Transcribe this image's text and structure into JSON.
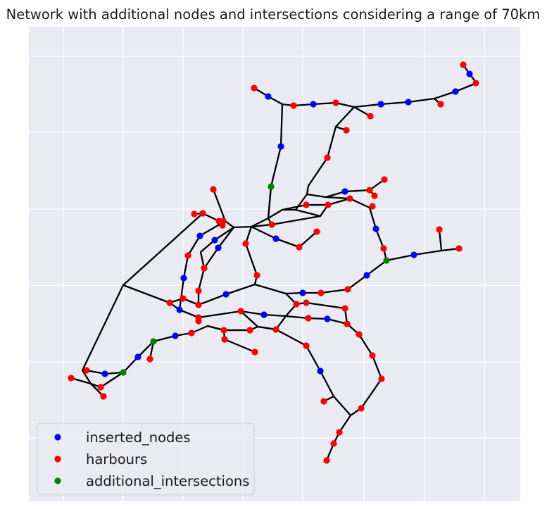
{
  "chart_data": {
    "type": "scatter",
    "title": "Network with additional nodes and intersections considering a range of 70km",
    "xlabel": "",
    "ylabel": "",
    "x_gridlines": [
      90,
      175,
      260,
      345,
      430,
      517,
      603,
      688
    ],
    "y_gridlines": [
      80,
      188,
      297,
      405,
      514,
      622
    ],
    "grid": true,
    "legend_position": "lower left",
    "colors": {
      "background": "#eaeaf2",
      "grid": "#ffffff",
      "edge": "#000000",
      "inserted_nodes": "#0000ff",
      "harbours": "#ff0000",
      "additional_intersections": "#008000"
    },
    "series": [
      {
        "name": "inserted_nodes",
        "color": "#0000ff",
        "points": [
          [
            381,
            137
          ],
          [
            445,
            148
          ],
          [
            541,
            148
          ],
          [
            580,
            145
          ],
          [
            647,
            130
          ],
          [
            667,
            105
          ],
          [
            399,
            208
          ],
          [
            490,
            272
          ],
          [
            534,
            325
          ],
          [
            392,
            339
          ],
          [
            305,
            341
          ],
          [
            284,
            335
          ],
          [
            310,
            352
          ],
          [
            261,
            395
          ],
          [
            321,
            418
          ],
          [
            430,
            416
          ],
          [
            375,
            447
          ],
          [
            465,
            453
          ],
          [
            255,
            440
          ],
          [
            249,
            477
          ],
          [
            196,
            507
          ],
          [
            149,
            531
          ],
          [
            455,
            527
          ],
          [
            521,
            391
          ],
          [
            588,
            362
          ]
        ]
      },
      {
        "name": "harbours",
        "color": "#ff0000",
        "points": [
          [
            361,
            125
          ],
          [
            417,
            150
          ],
          [
            477,
            146
          ],
          [
            526,
            165
          ],
          [
            626,
            148
          ],
          [
            658,
            92
          ],
          [
            676,
            118
          ],
          [
            492,
            185
          ],
          [
            465,
            224
          ],
          [
            546,
            255
          ],
          [
            525,
            270
          ],
          [
            532,
            278
          ],
          [
            497,
            282
          ],
          [
            466,
            291
          ],
          [
            435,
            291
          ],
          [
            529,
            293
          ],
          [
            450,
            329
          ],
          [
            425,
            351
          ],
          [
            386,
            319
          ],
          [
            303,
            269
          ],
          [
            276,
            304
          ],
          [
            288,
            303
          ],
          [
            311,
            314
          ],
          [
            317,
            314
          ],
          [
            316,
            320
          ],
          [
            349,
            346
          ],
          [
            267,
            363
          ],
          [
            290,
            381
          ],
          [
            365,
            391
          ],
          [
            456,
            416
          ],
          [
            494,
            411
          ],
          [
            624,
            326
          ],
          [
            652,
            353
          ],
          [
            545,
            353
          ],
          [
            282,
            413
          ],
          [
            260,
            424
          ],
          [
            241,
            430
          ],
          [
            282,
            433
          ],
          [
            421,
            432
          ],
          [
            435,
            430
          ],
          [
            490,
            438
          ],
          [
            342,
            442
          ],
          [
            282,
            451
          ],
          [
            282,
            456
          ],
          [
            438,
            452
          ],
          [
            493,
            460
          ],
          [
            318,
            469
          ],
          [
            355,
            469
          ],
          [
            392,
            468
          ],
          [
            272,
            473
          ],
          [
            510,
            475
          ],
          [
            319,
            482
          ],
          [
            435,
            491
          ],
          [
            362,
            500
          ],
          [
            213,
            510
          ],
          [
            529,
            505
          ],
          [
            123,
            526
          ],
          [
            101,
            537
          ],
          [
            143,
            550
          ],
          [
            147,
            563
          ],
          [
            542,
            538
          ],
          [
            460,
            570
          ],
          [
            513,
            580
          ],
          [
            482,
            614
          ],
          [
            474,
            630
          ],
          [
            464,
            654
          ]
        ]
      },
      {
        "name": "additional_intersections",
        "color": "#008000",
        "points": [
          [
            385,
            265
          ],
          [
            549,
            370
          ],
          [
            218,
            485
          ],
          [
            175,
            529
          ]
        ]
      }
    ],
    "edges": [
      [
        [
          361,
          125
        ],
        [
          381,
          137
        ],
        [
          401,
          148
        ],
        [
          417,
          150
        ],
        [
          445,
          148
        ],
        [
          477,
          146
        ],
        [
          503,
          152
        ],
        [
          541,
          148
        ],
        [
          580,
          145
        ],
        [
          617,
          140
        ],
        [
          647,
          130
        ],
        [
          677,
          118
        ],
        [
          667,
          105
        ],
        [
          658,
          92
        ]
      ],
      [
        [
          617,
          140
        ],
        [
          626,
          148
        ]
      ],
      [
        [
          503,
          152
        ],
        [
          526,
          165
        ]
      ],
      [
        [
          503,
          152
        ],
        [
          477,
          180
        ],
        [
          492,
          185
        ]
      ],
      [
        [
          477,
          180
        ],
        [
          465,
          224
        ],
        [
          438,
          264
        ],
        [
          436,
          276
        ],
        [
          463,
          280
        ],
        [
          490,
          272
        ],
        [
          525,
          270
        ],
        [
          546,
          255
        ]
      ],
      [
        [
          525,
          270
        ],
        [
          532,
          278
        ]
      ],
      [
        [
          463,
          280
        ],
        [
          497,
          282
        ],
        [
          525,
          295
        ],
        [
          534,
          325
        ],
        [
          545,
          353
        ],
        [
          549,
          370
        ],
        [
          521,
          391
        ],
        [
          494,
          411
        ],
        [
          456,
          416
        ],
        [
          430,
          416
        ],
        [
          406,
          417
        ],
        [
          362,
          404
        ],
        [
          321,
          418
        ],
        [
          282,
          433
        ],
        [
          260,
          424
        ],
        [
          241,
          430
        ]
      ],
      [
        [
          525,
          295
        ],
        [
          529,
          293
        ]
      ],
      [
        [
          549,
          370
        ],
        [
          588,
          362
        ],
        [
          627,
          356
        ],
        [
          652,
          353
        ]
      ],
      [
        [
          627,
          356
        ],
        [
          624,
          326
        ]
      ],
      [
        [
          401,
          148
        ],
        [
          399,
          208
        ],
        [
          385,
          265
        ],
        [
          381,
          310
        ],
        [
          401,
          298
        ],
        [
          435,
          291
        ],
        [
          466,
          291
        ],
        [
          497,
          282
        ]
      ],
      [
        [
          436,
          276
        ],
        [
          420,
          298
        ],
        [
          401,
          298
        ]
      ],
      [
        [
          420,
          298
        ],
        [
          455,
          307
        ],
        [
          386,
          319
        ],
        [
          357,
          322
        ],
        [
          332,
          323
        ],
        [
          320,
          314
        ],
        [
          303,
          269
        ]
      ],
      [
        [
          455,
          307
        ],
        [
          466,
          291
        ]
      ],
      [
        [
          385,
          265
        ],
        [
          381,
          310
        ],
        [
          386,
          319
        ]
      ],
      [
        [
          381,
          310
        ],
        [
          357,
          322
        ],
        [
          349,
          346
        ],
        [
          365,
          391
        ],
        [
          362,
          404
        ]
      ],
      [
        [
          357,
          322
        ],
        [
          392,
          339
        ],
        [
          425,
          351
        ],
        [
          450,
          329
        ]
      ],
      [
        [
          332,
          323
        ],
        [
          310,
          352
        ],
        [
          290,
          381
        ],
        [
          282,
          413
        ],
        [
          282,
          433
        ]
      ],
      [
        [
          332,
          323
        ],
        [
          305,
          341
        ],
        [
          285,
          358
        ],
        [
          290,
          381
        ]
      ],
      [
        [
          320,
          314
        ],
        [
          284,
          335
        ],
        [
          267,
          363
        ],
        [
          261,
          395
        ],
        [
          255,
          440
        ]
      ],
      [
        [
          276,
          304
        ],
        [
          288,
          303
        ],
        [
          311,
          314
        ]
      ],
      [
        [
          288,
          303
        ],
        [
          175,
          405
        ],
        [
          241,
          430
        ],
        [
          255,
          440
        ],
        [
          282,
          451
        ]
      ],
      [
        [
          175,
          405
        ],
        [
          117,
          526
        ],
        [
          129,
          545
        ],
        [
          147,
          563
        ]
      ],
      [
        [
          129,
          545
        ],
        [
          101,
          537
        ]
      ],
      [
        [
          129,
          545
        ],
        [
          143,
          550
        ],
        [
          175,
          529
        ],
        [
          196,
          507
        ],
        [
          218,
          485
        ],
        [
          249,
          477
        ],
        [
          272,
          473
        ],
        [
          295,
          463
        ],
        [
          318,
          469
        ],
        [
          355,
          469
        ]
      ],
      [
        [
          218,
          485
        ],
        [
          213,
          510
        ]
      ],
      [
        [
          123,
          526
        ],
        [
          149,
          531
        ],
        [
          175,
          529
        ]
      ],
      [
        [
          282,
          451
        ],
        [
          342,
          442
        ],
        [
          375,
          447
        ],
        [
          406,
          449
        ],
        [
          421,
          432
        ],
        [
          435,
          430
        ],
        [
          490,
          438
        ],
        [
          493,
          460
        ],
        [
          510,
          475
        ],
        [
          529,
          505
        ],
        [
          542,
          538
        ],
        [
          513,
          580
        ],
        [
          498,
          590
        ],
        [
          482,
          614
        ],
        [
          474,
          630
        ],
        [
          464,
          654
        ]
      ],
      [
        [
          406,
          449
        ],
        [
          438,
          452
        ],
        [
          465,
          453
        ],
        [
          493,
          460
        ]
      ],
      [
        [
          342,
          442
        ],
        [
          366,
          464
        ],
        [
          392,
          468
        ],
        [
          406,
          449
        ]
      ],
      [
        [
          366,
          464
        ],
        [
          355,
          469
        ],
        [
          318,
          469
        ],
        [
          319,
          482
        ],
        [
          362,
          500
        ]
      ],
      [
        [
          366,
          464
        ],
        [
          392,
          468
        ],
        [
          435,
          491
        ],
        [
          455,
          527
        ],
        [
          474,
          563
        ],
        [
          460,
          570
        ]
      ],
      [
        [
          474,
          563
        ],
        [
          498,
          590
        ]
      ],
      [
        [
          295,
          463
        ],
        [
          318,
          469
        ]
      ],
      [
        [
          406,
          417
        ],
        [
          421,
          432
        ]
      ],
      [
        [
          490,
          438
        ],
        [
          490,
          440
        ]
      ]
    ]
  }
}
